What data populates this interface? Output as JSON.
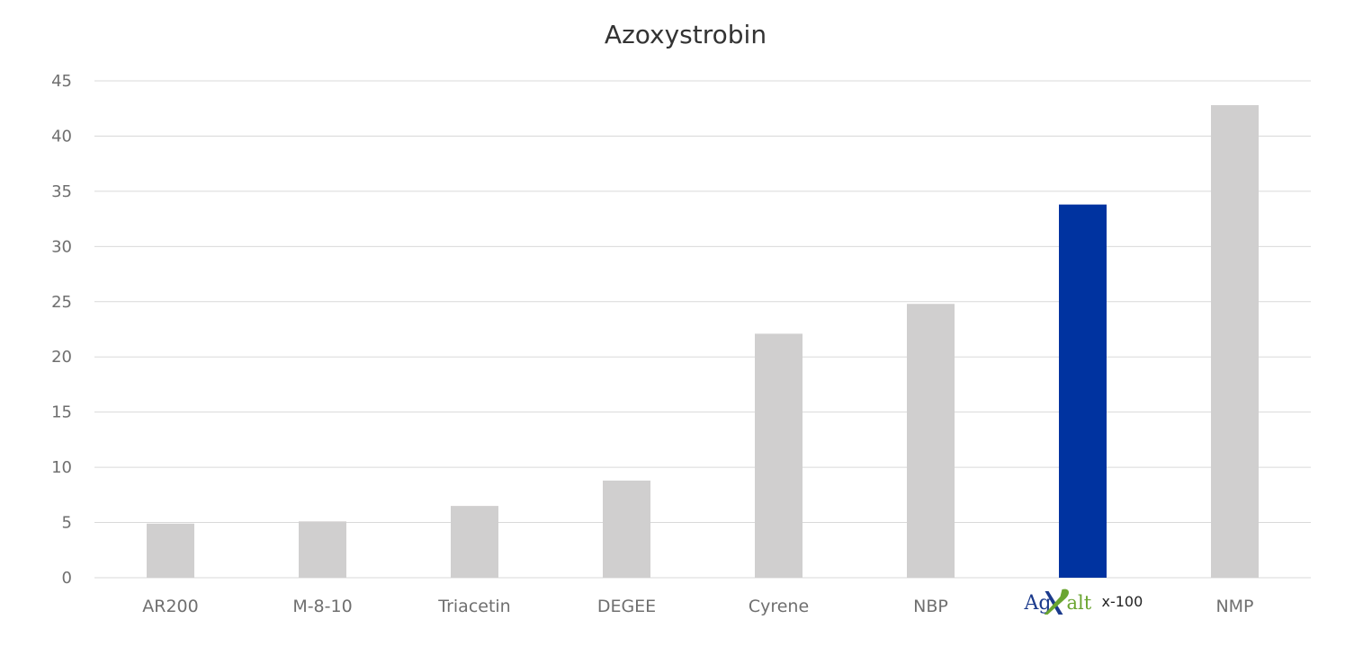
{
  "chart_data": {
    "type": "bar",
    "title": "Azoxystrobin",
    "xlabel": "",
    "ylabel": "",
    "ylim": [
      0,
      45
    ],
    "yticks": [
      "0",
      "5",
      "10",
      "15",
      "20",
      "25",
      "30",
      "35",
      "40",
      "45"
    ],
    "grid": true,
    "categories": [
      "AR200",
      "M-8-10",
      "Triacetin",
      "DEGEE",
      "Cyrene",
      "NBP",
      "AgXalt x-100",
      "NMP"
    ],
    "values": [
      4.9,
      5.1,
      6.5,
      8.8,
      22.1,
      24.8,
      33.8,
      42.8
    ],
    "highlight_index": 6
  },
  "logo_label": {
    "ag": "Ag",
    "x": "X",
    "alt": "alt",
    "model": "x-100"
  },
  "colors": {
    "bar": "#d0cfcf",
    "highlight": "#0033a0",
    "logo_x": "#1b3a8c",
    "logo_leaf": "#6aa530"
  }
}
